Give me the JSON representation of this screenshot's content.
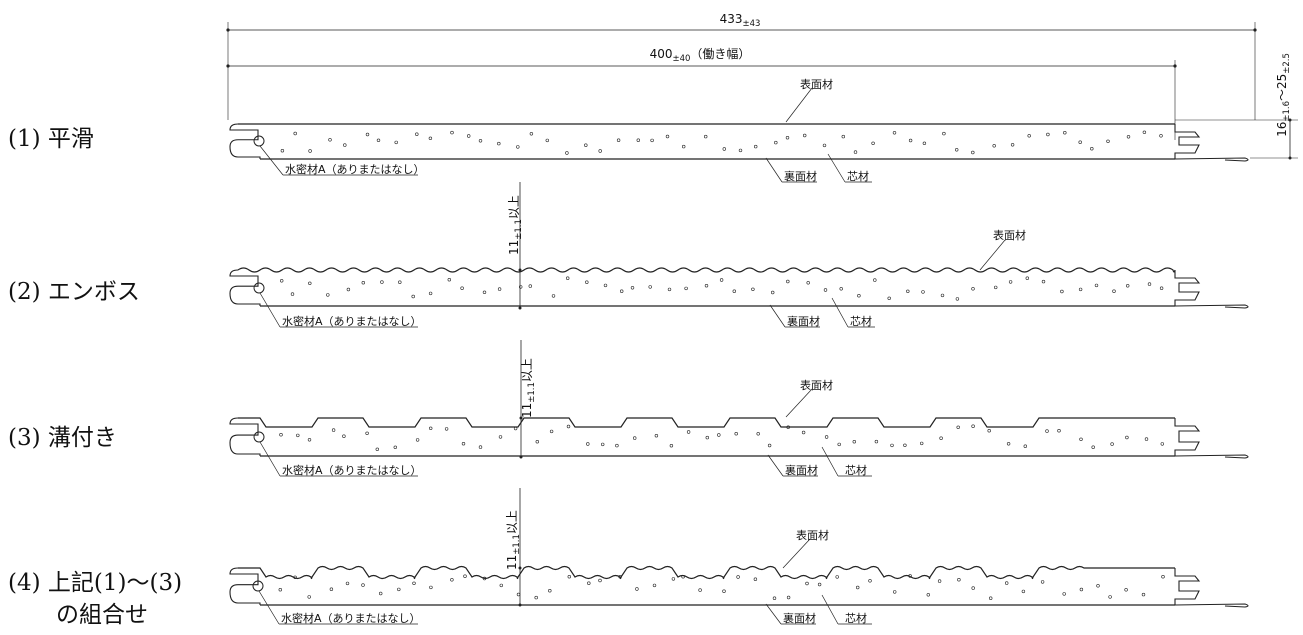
{
  "dimensions": {
    "overall_width": {
      "value": "433",
      "tol": "±43"
    },
    "working_width": {
      "value": "400",
      "tol": "±40",
      "note": "（働き幅）"
    },
    "thickness": {
      "min": "16",
      "min_tol": "±1.6",
      "sep": "～",
      "max": "25",
      "max_tol": "±2.5"
    }
  },
  "panels": [
    {
      "label": "(1) 平滑",
      "profile": "flat",
      "face": "表面材",
      "back": "裏面材",
      "core": "芯材",
      "seal": "水密材A（ありまたはなし）"
    },
    {
      "label": "(2) エンボス",
      "profile": "emboss",
      "face": "表面材",
      "back": "裏面材",
      "core": "芯材",
      "seal": "水密材A（ありまたはなし）",
      "depth": {
        "value": "11",
        "tol": "±1.1",
        "suffix": "以上"
      }
    },
    {
      "label": "(3) 溝付き",
      "profile": "grooved",
      "face": "表面材",
      "back": "裏面材",
      "core": "芯材",
      "seal": "水密材A（ありまたはなし）",
      "depth": {
        "value": "11",
        "tol": "±1.1",
        "suffix": "以上"
      }
    },
    {
      "label": "(4) 上記(1)～(3)",
      "label2": "の組合せ",
      "profile": "combined",
      "face": "表面材",
      "back": "裏面材",
      "core": "芯材",
      "seal": "水密材A（ありまたはなし）",
      "depth": {
        "value": "11",
        "tol": "±1.1",
        "suffix": "以上"
      }
    }
  ]
}
